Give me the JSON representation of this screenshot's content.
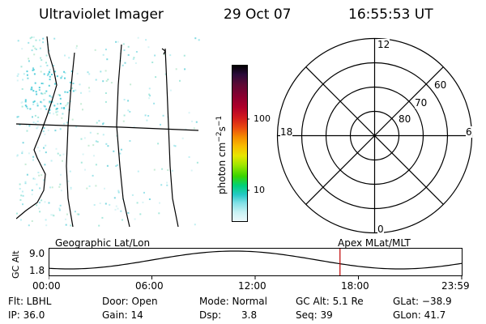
{
  "header": {
    "title": "Ultraviolet Imager",
    "date": "29 Oct 07",
    "time": "16:55:53 UT"
  },
  "colorbar": {
    "label_html": "photon cm",
    "tick_labels": [
      "100",
      "10"
    ],
    "colors": [
      "#000000",
      "#2a0a3a",
      "#5a0a35",
      "#8a0030",
      "#b0002a",
      "#d41c1c",
      "#ea4a10",
      "#f58c00",
      "#f8bd00",
      "#e7e600",
      "#9ee600",
      "#39d400",
      "#00d07a",
      "#26c9c7",
      "#7fe0e6",
      "#c8f2f4",
      "#eef9fb"
    ]
  },
  "polar": {
    "labels": {
      "top": "12",
      "left": "18",
      "right": "6",
      "bottom": "0",
      "lat60": "60",
      "lat70": "70",
      "lat80": "80"
    }
  },
  "orbit": {
    "left_label": "Geographic Lat/Lon",
    "right_label": "Apex MLat/MLT",
    "axis_title": "GC Alt",
    "y_top": "9.0",
    "y_bottom": "1.8",
    "x_ticks": [
      "00:00",
      "06:00",
      "12:00",
      "18:00",
      "23:59"
    ],
    "current_marker_hour": 16.93
  },
  "status": {
    "flt": "Flt: LBHL",
    "ip": "IP: 36.0",
    "door": "Door: Open",
    "gain": "Gain: 14",
    "mode": "Mode: Normal",
    "dsp_label": "Dsp:",
    "dsp_value": "3.8",
    "gcalt": "GC Alt: 5.1 Re",
    "seq": "Seq: 39",
    "glat": "GLat: −38.9",
    "glon": "GLon:  41.7"
  }
}
